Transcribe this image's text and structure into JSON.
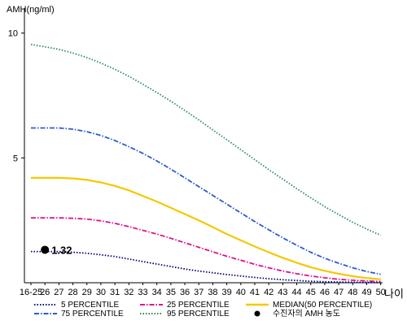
{
  "chart_data": {
    "type": "line",
    "title": "",
    "ylabel": "AMH(ng/ml)",
    "xlabel": "나이",
    "ylim": [
      0,
      11
    ],
    "yticks": [
      5,
      10
    ],
    "categories": [
      "16-25",
      "26",
      "27",
      "28",
      "29",
      "30",
      "31",
      "32",
      "33",
      "34",
      "35",
      "36",
      "37",
      "38",
      "39",
      "40",
      "41",
      "42",
      "43",
      "44",
      "45",
      "46",
      "47",
      "48",
      "49",
      "50"
    ],
    "series": [
      {
        "name": "5 PERCENTILE",
        "color": "#000080",
        "dash": "1.5,2",
        "values": [
          1.25,
          1.25,
          1.25,
          1.22,
          1.18,
          1.12,
          1.05,
          0.95,
          0.85,
          0.75,
          0.65,
          0.55,
          0.47,
          0.4,
          0.33,
          0.27,
          0.21,
          0.16,
          0.12,
          0.09,
          0.06,
          0.04,
          0.03,
          0.02,
          0.01,
          0.01
        ]
      },
      {
        "name": "25 PERCENTILE",
        "color": "#e0108a",
        "dash": "6,2,1.5,2",
        "values": [
          2.6,
          2.6,
          2.6,
          2.58,
          2.55,
          2.48,
          2.38,
          2.25,
          2.1,
          1.95,
          1.78,
          1.6,
          1.42,
          1.24,
          1.06,
          0.9,
          0.74,
          0.6,
          0.47,
          0.36,
          0.27,
          0.2,
          0.14,
          0.1,
          0.07,
          0.05
        ]
      },
      {
        "name": "MEDIAN(50 PERCENTILE)",
        "color": "#f5c800",
        "dash": "",
        "values": [
          4.2,
          4.2,
          4.2,
          4.18,
          4.12,
          4.02,
          3.88,
          3.7,
          3.48,
          3.25,
          3.0,
          2.75,
          2.5,
          2.23,
          1.95,
          1.7,
          1.45,
          1.22,
          1.0,
          0.8,
          0.62,
          0.48,
          0.36,
          0.26,
          0.19,
          0.14
        ]
      },
      {
        "name": "75 PERCENTILE",
        "color": "#2a5cd0",
        "dash": "6,2,1.5,2",
        "values": [
          6.2,
          6.2,
          6.2,
          6.15,
          6.05,
          5.9,
          5.7,
          5.45,
          5.18,
          4.88,
          4.55,
          4.2,
          3.85,
          3.5,
          3.15,
          2.8,
          2.45,
          2.12,
          1.8,
          1.5,
          1.22,
          0.98,
          0.78,
          0.6,
          0.45,
          0.34
        ]
      },
      {
        "name": "95 PERCENTILE",
        "color": "#2e8b57",
        "dash": "1.5,2",
        "values": [
          9.55,
          9.45,
          9.35,
          9.2,
          9.02,
          8.8,
          8.55,
          8.27,
          7.95,
          7.62,
          7.27,
          6.9,
          6.52,
          6.12,
          5.73,
          5.33,
          4.93,
          4.53,
          4.15,
          3.77,
          3.4,
          3.05,
          2.73,
          2.42,
          2.15,
          1.9
        ]
      }
    ],
    "patient": {
      "name": "수진자의 AMH 농도",
      "x": "26",
      "value": 1.32,
      "label": "1.32"
    },
    "legend": {
      "placement": "bottom",
      "items": [
        "5 PERCENTILE",
        "25 PERCENTILE",
        "MEDIAN(50 PERCENTILE)",
        "75 PERCENTILE",
        "95 PERCENTILE",
        "수진자의 AMH 농도"
      ]
    }
  }
}
